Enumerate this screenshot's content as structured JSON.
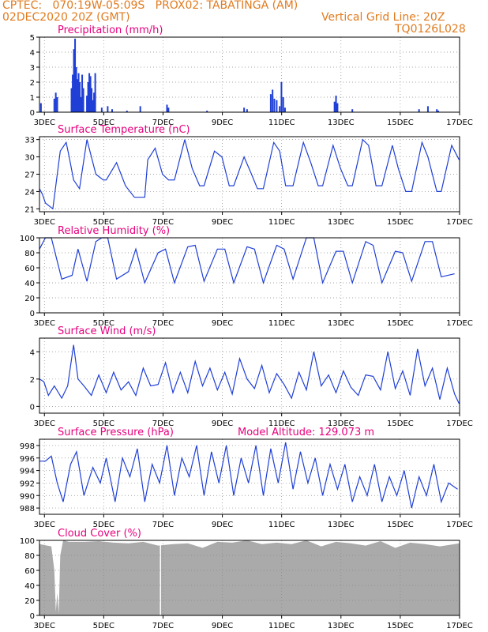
{
  "header": {
    "line1": "CPTEC:   070:19W-05:09S   PROX02: TABATINGA (AM)",
    "line2_left": "02DEC2020 20Z (GMT)",
    "line2_right": "Vertical Grid Line: 20Z",
    "line3_right": "TQ0126L028"
  },
  "colors": {
    "header": "#e07b1f",
    "title": "#e6007e",
    "series": "#1f3fd6",
    "cloud": "#aaaaaa",
    "grid": "#888888"
  },
  "x_axis": {
    "start_label": "02DEC 20Z",
    "end_label": "17DEC 00Z",
    "tick_labels": [
      "3DEC",
      "5DEC",
      "7DEC",
      "9DEC",
      "11DEC",
      "13DEC",
      "15DEC",
      "17DEC"
    ]
  },
  "chart_data": [
    {
      "id": "precip",
      "type": "bar",
      "title": "Precipitation (mm/h)",
      "ylim": [
        0,
        5
      ],
      "yticks": [
        0,
        1,
        2,
        3,
        4,
        5
      ],
      "x_unit": "days since 02DEC 20Z",
      "x": [
        0.05,
        0.5,
        0.55,
        0.6,
        1.08,
        1.12,
        1.16,
        1.2,
        1.24,
        1.28,
        1.32,
        1.36,
        1.4,
        1.44,
        1.48,
        1.6,
        1.64,
        1.68,
        1.72,
        1.76,
        1.8,
        1.84,
        1.88,
        2.1,
        2.3,
        2.45,
        2.95,
        3.4,
        4.3,
        4.35,
        5.65,
        6.9,
        7.0,
        7.8,
        7.86,
        7.92,
        8.0,
        8.1,
        8.16,
        8.22,
        8.28,
        9.95,
        10.0,
        10.05,
        10.55,
        12.8,
        13.1,
        13.4,
        13.45
      ],
      "values": [
        0.6,
        0.9,
        1.3,
        1.0,
        1.6,
        2.5,
        4.2,
        4.9,
        3.0,
        2.2,
        2.6,
        2.0,
        1.0,
        2.5,
        1.6,
        1.1,
        2.0,
        2.6,
        2.4,
        1.6,
        0.8,
        1.3,
        2.6,
        0.3,
        0.4,
        0.2,
        0.1,
        0.4,
        0.5,
        0.3,
        0.1,
        0.3,
        0.2,
        1.2,
        1.5,
        0.9,
        0.8,
        0.4,
        2.0,
        1.0,
        0.3,
        0.7,
        1.1,
        0.6,
        0.2,
        0.2,
        0.4,
        0.2,
        0.1
      ]
    },
    {
      "id": "temp",
      "type": "line",
      "title": "Surface Temperature (nC)",
      "ylim": [
        20.5,
        33.5
      ],
      "yticks": [
        21,
        24,
        27,
        30,
        33
      ],
      "x_unit": "days since 02DEC 20Z",
      "x": [
        0.0,
        0.1,
        0.2,
        0.45,
        0.7,
        0.9,
        1.0,
        1.15,
        1.35,
        1.6,
        1.9,
        2.15,
        2.25,
        2.6,
        2.9,
        3.2,
        3.55,
        3.65,
        3.9,
        4.15,
        4.35,
        4.55,
        4.9,
        5.15,
        5.4,
        5.55,
        5.9,
        6.15,
        6.4,
        6.55,
        6.9,
        7.15,
        7.35,
        7.55,
        7.9,
        8.1,
        8.3,
        8.55,
        8.9,
        9.15,
        9.4,
        9.55,
        9.9,
        10.15,
        10.4,
        10.55,
        10.9,
        11.1,
        11.35,
        11.55,
        11.9,
        12.1,
        12.35,
        12.55,
        12.9,
        13.1,
        13.4,
        13.55,
        13.9,
        14.15
      ],
      "values": [
        24.5,
        23.5,
        22,
        21,
        31,
        32.5,
        30,
        26,
        24.5,
        33,
        27,
        26,
        26,
        29,
        25,
        23,
        23,
        29.5,
        31.5,
        27,
        26,
        26,
        33,
        28,
        25,
        25,
        31,
        30,
        25,
        25,
        30,
        27,
        24.5,
        24.5,
        32.5,
        31,
        25,
        25,
        32.5,
        29,
        25,
        25,
        32,
        28,
        25,
        25,
        33,
        32,
        25,
        25,
        32,
        28,
        24,
        24,
        32.5,
        30,
        24,
        24,
        32,
        29.5
      ]
    },
    {
      "id": "rh",
      "type": "line",
      "title": "Relative Humidity (%)",
      "ylim": [
        0,
        100
      ],
      "yticks": [
        0,
        20,
        40,
        60,
        80,
        100
      ],
      "x_unit": "days since 02DEC 20Z",
      "x": [
        0.0,
        0.2,
        0.4,
        0.75,
        1.1,
        1.3,
        1.6,
        1.9,
        2.1,
        2.3,
        2.6,
        3.0,
        3.25,
        3.55,
        4.0,
        4.25,
        4.55,
        5.0,
        5.25,
        5.55,
        6.0,
        6.25,
        6.55,
        7.0,
        7.25,
        7.55,
        8.0,
        8.25,
        8.55,
        9.0,
        9.25,
        9.55,
        10.0,
        10.25,
        10.55,
        11.0,
        11.25,
        11.55,
        12.0,
        12.25,
        12.55,
        13.0,
        13.25,
        13.55,
        14.0
      ],
      "values": [
        85,
        100,
        100,
        45,
        50,
        85,
        42,
        95,
        100,
        100,
        45,
        55,
        85,
        40,
        80,
        85,
        40,
        88,
        90,
        42,
        85,
        85,
        40,
        88,
        85,
        40,
        90,
        85,
        45,
        100,
        100,
        40,
        82,
        82,
        40,
        95,
        90,
        40,
        82,
        80,
        42,
        95,
        95,
        48,
        52
      ]
    },
    {
      "id": "wind",
      "type": "line",
      "title": "Surface Wind (m/s)",
      "ylim": [
        -0.5,
        5
      ],
      "yticks": [
        0,
        2,
        4
      ],
      "x_unit": "days since 02DEC 20Z",
      "x": [
        0.0,
        0.15,
        0.3,
        0.5,
        0.75,
        0.95,
        1.15,
        1.3,
        1.5,
        1.75,
        2.0,
        2.25,
        2.5,
        2.75,
        3.0,
        3.25,
        3.5,
        3.75,
        4.0,
        4.25,
        4.5,
        4.75,
        5.0,
        5.25,
        5.5,
        5.75,
        6.0,
        6.25,
        6.5,
        6.75,
        7.0,
        7.25,
        7.5,
        7.75,
        8.0,
        8.25,
        8.5,
        8.75,
        9.0,
        9.25,
        9.5,
        9.75,
        10.0,
        10.25,
        10.5,
        10.75,
        11.0,
        11.25,
        11.5,
        11.75,
        12.0,
        12.25,
        12.5,
        12.75,
        13.0,
        13.25,
        13.5,
        13.75,
        14.0,
        14.15
      ],
      "values": [
        2,
        1.8,
        0.8,
        1.5,
        0.6,
        1.5,
        4.5,
        2.0,
        1.5,
        0.8,
        2.3,
        1.0,
        2.5,
        1.2,
        1.8,
        0.8,
        2.8,
        1.5,
        1.6,
        3.2,
        1.0,
        2.5,
        1.0,
        3.3,
        1.5,
        2.8,
        1.2,
        2.5,
        0.9,
        3.5,
        2.0,
        1.3,
        3.0,
        1.0,
        2.4,
        1.6,
        0.6,
        2.5,
        1.2,
        4.0,
        1.5,
        2.3,
        1.0,
        2.6,
        1.4,
        0.8,
        2.3,
        2.2,
        1.2,
        4.0,
        1.3,
        2.6,
        0.8,
        4.2,
        1.5,
        2.8,
        0.5,
        2.8,
        0.9,
        0.2
      ]
    },
    {
      "id": "pres",
      "type": "line",
      "title": "Surface Pressure (hPa)",
      "subtitle": "Model Altitude: 129.073 m",
      "ylim": [
        987,
        999
      ],
      "yticks": [
        988,
        990,
        992,
        994,
        996,
        998
      ],
      "x_unit": "days since 02DEC 20Z",
      "x": [
        0.0,
        0.2,
        0.4,
        0.6,
        0.8,
        1.05,
        1.25,
        1.5,
        1.8,
        2.05,
        2.25,
        2.55,
        2.8,
        3.05,
        3.3,
        3.55,
        3.8,
        4.05,
        4.3,
        4.55,
        4.8,
        5.05,
        5.3,
        5.55,
        5.8,
        6.05,
        6.3,
        6.55,
        6.8,
        7.05,
        7.3,
        7.55,
        7.8,
        8.05,
        8.3,
        8.55,
        8.8,
        9.05,
        9.3,
        9.55,
        9.8,
        10.05,
        10.3,
        10.55,
        10.8,
        11.05,
        11.3,
        11.55,
        11.8,
        12.05,
        12.3,
        12.55,
        12.8,
        13.05,
        13.3,
        13.55,
        13.8,
        14.1
      ],
      "values": [
        995.5,
        995.5,
        996.3,
        992,
        989,
        995,
        997,
        990,
        994.5,
        992,
        996,
        989,
        996,
        993,
        997.5,
        989,
        995,
        992,
        998,
        990,
        996,
        993,
        998,
        990,
        997,
        992,
        998,
        990,
        996,
        992,
        998,
        990,
        997.5,
        992,
        998.5,
        991,
        997,
        992,
        996,
        990,
        995,
        991,
        995,
        989,
        993,
        990,
        995,
        989,
        993,
        990,
        994,
        988,
        993,
        990,
        995,
        989,
        992,
        991
      ]
    },
    {
      "id": "cloud",
      "type": "area",
      "title": "Cloud Cover (%)",
      "ylim": [
        0,
        100
      ],
      "yticks": [
        0,
        20,
        40,
        60,
        80,
        100
      ],
      "x_unit": "days since 02DEC 20Z",
      "x": [
        0.0,
        0.4,
        0.5,
        0.55,
        0.6,
        0.65,
        0.7,
        0.8,
        1.0,
        1.5,
        2.0,
        2.5,
        3.0,
        3.5,
        4.0,
        4.5,
        5.0,
        5.5,
        6.0,
        6.5,
        7.0,
        7.5,
        8.0,
        8.5,
        9.0,
        9.5,
        10.0,
        10.5,
        11.0,
        11.5,
        12.0,
        12.5,
        13.0,
        13.5,
        14.0,
        14.15
      ],
      "values": [
        95,
        92,
        60,
        5,
        30,
        3,
        80,
        100,
        98,
        98,
        99,
        97,
        96,
        98,
        93,
        95,
        96,
        90,
        98,
        97,
        100,
        95,
        97,
        95,
        100,
        92,
        98,
        96,
        93,
        99,
        90,
        97,
        95,
        92,
        95,
        96
      ],
      "gaps": [
        {
          "x": 4.08,
          "value": 0
        }
      ]
    }
  ]
}
